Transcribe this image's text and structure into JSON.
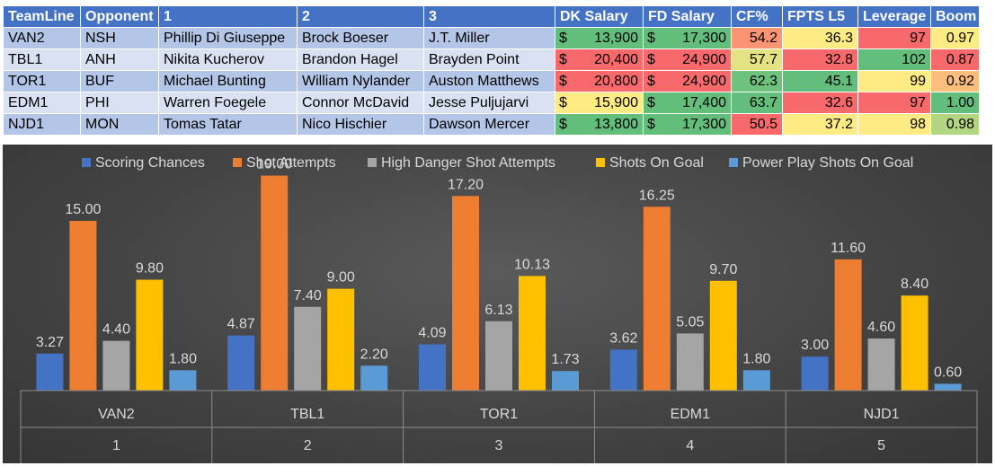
{
  "table": {
    "headers": [
      "TeamLine",
      "Opponent",
      "1",
      "2",
      "3",
      "DK Salary",
      "FD Salary",
      "CF%",
      "FPTS L5",
      "Leverage",
      "Boom"
    ],
    "currency_symbol": "$",
    "rows": [
      {
        "team_line": "VAN2",
        "opponent": "NSH",
        "p1": "Phillip Di Giuseppe",
        "p2": "Brock Boeser",
        "p3": "J.T. Miller",
        "dk_salary": "13,900",
        "fd_salary": "17,300",
        "cf_pct": "54.2",
        "fpts_l5": "36.3",
        "leverage": "97",
        "boom": "0.97"
      },
      {
        "team_line": "TBL1",
        "opponent": "ANH",
        "p1": "Nikita Kucherov",
        "p2": "Brandon Hagel",
        "p3": "Brayden Point",
        "dk_salary": "20,400",
        "fd_salary": "24,900",
        "cf_pct": "57.7",
        "fpts_l5": "32.8",
        "leverage": "102",
        "boom": "0.87"
      },
      {
        "team_line": "TOR1",
        "opponent": "BUF",
        "p1": "Michael Bunting",
        "p2": "William Nylander",
        "p3": "Auston Matthews",
        "dk_salary": "20,800",
        "fd_salary": "24,900",
        "cf_pct": "62.3",
        "fpts_l5": "45.1",
        "leverage": "99",
        "boom": "0.92"
      },
      {
        "team_line": "EDM1",
        "opponent": "PHI",
        "p1": "Warren Foegele",
        "p2": "Connor McDavid",
        "p3": "Jesse Puljujarvi",
        "dk_salary": "15,900",
        "fd_salary": "17,400",
        "cf_pct": "63.7",
        "fpts_l5": "32.6",
        "leverage": "97",
        "boom": "1.00"
      },
      {
        "team_line": "NJD1",
        "opponent": "MON",
        "p1": "Tomas Tatar",
        "p2": "Nico Hischier",
        "p3": "Dawson Mercer",
        "dk_salary": "13,800",
        "fd_salary": "17,300",
        "cf_pct": "50.5",
        "fpts_l5": "37.2",
        "leverage": "98",
        "boom": "0.98"
      }
    ],
    "cell_colors": {
      "dk_salary": [
        "#63be7b",
        "#f8696b",
        "#f8696b",
        "#ffeb84",
        "#63be7b"
      ],
      "fd_salary": [
        "#63be7b",
        "#f8696b",
        "#f8696b",
        "#63be7b",
        "#63be7b"
      ],
      "cf_pct": [
        "#fa9473",
        "#e3e383",
        "#6ec27d",
        "#63be7b",
        "#f8696b"
      ],
      "fpts_l5": [
        "#ffeb84",
        "#f8696b",
        "#63be7b",
        "#f8696b",
        "#ffeb84"
      ],
      "leverage": [
        "#f8696b",
        "#63be7b",
        "#ffeb84",
        "#f8696b",
        "#ffeb84"
      ],
      "boom": [
        "#ffeb84",
        "#f8696b",
        "#fdbe7d",
        "#63be7b",
        "#b1d580"
      ]
    }
  },
  "chart_data": {
    "type": "bar",
    "categories": [
      "VAN2",
      "TBL1",
      "TOR1",
      "EDM1",
      "NJD1"
    ],
    "category_sublabels": [
      "1",
      "2",
      "3",
      "4",
      "5"
    ],
    "series": [
      {
        "name": "Scoring Chances",
        "color": "#4472c4",
        "values": [
          3.27,
          4.87,
          4.09,
          3.62,
          3.0
        ],
        "labels": [
          "3.27",
          "4.87",
          "4.09",
          "3.62",
          "3.00"
        ]
      },
      {
        "name": "Shot Attempts",
        "color": "#ed7d31",
        "values": [
          15.0,
          19.0,
          17.2,
          16.25,
          11.6
        ],
        "labels": [
          "15.00",
          "19.00",
          "17.20",
          "16.25",
          "11.60"
        ]
      },
      {
        "name": "High Danger Shot Attempts",
        "color": "#a5a5a5",
        "values": [
          4.4,
          7.4,
          6.13,
          5.05,
          4.6
        ],
        "labels": [
          "4.40",
          "7.40",
          "6.13",
          "5.05",
          "4.60"
        ]
      },
      {
        "name": "Shots On Goal",
        "color": "#ffc000",
        "values": [
          9.8,
          9.0,
          10.13,
          9.7,
          8.4
        ],
        "labels": [
          "9.80",
          "9.00",
          "10.13",
          "9.70",
          "8.40"
        ]
      },
      {
        "name": "Power Play Shots On Goal",
        "color": "#5b9bd5",
        "values": [
          1.8,
          2.2,
          1.73,
          1.8,
          0.6
        ],
        "labels": [
          "1.80",
          "2.20",
          "1.73",
          "1.80",
          "0.60"
        ]
      }
    ],
    "ylim": [
      0,
      20
    ],
    "legend_position": "top",
    "grid": false
  }
}
